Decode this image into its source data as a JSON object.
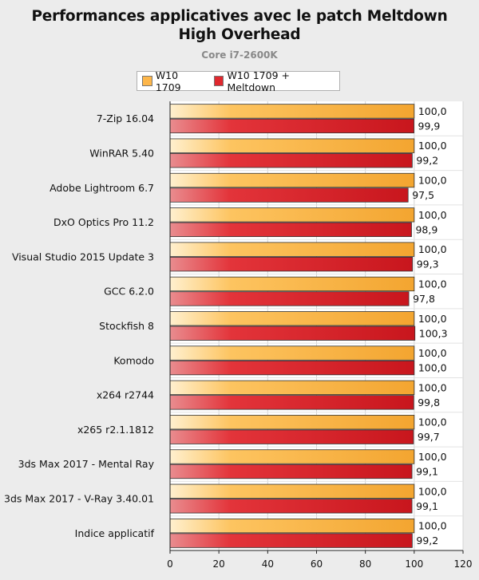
{
  "chart_data": {
    "type": "bar",
    "orientation": "horizontal",
    "title_lines": [
      "Performances applicatives avec le patch Meltdown",
      "High Overhead"
    ],
    "subtitle": "Core i7-2600K",
    "categories": [
      "7-Zip 16.04",
      "WinRAR 5.40",
      "Adobe Lightroom 6.7",
      "DxO Optics Pro 11.2",
      "Visual Studio 2015 Update 3",
      "GCC 6.2.0",
      "Stockfish 8",
      "Komodo",
      "x264 r2744",
      "x265 r2.1.1812",
      "3ds Max 2017 - Mental Ray",
      "3ds Max 2017 - V-Ray 3.40.01",
      "Indice applicatif"
    ],
    "series": [
      {
        "name": "W10 1709",
        "color": "#fdb64a",
        "values": [
          100.0,
          100.0,
          100.0,
          100.0,
          100.0,
          100.0,
          100.0,
          100.0,
          100.0,
          100.0,
          100.0,
          100.0,
          100.0
        ],
        "labels": [
          "100,0",
          "100,0",
          "100,0",
          "100,0",
          "100,0",
          "100,0",
          "100,0",
          "100,0",
          "100,0",
          "100,0",
          "100,0",
          "100,0",
          "100,0"
        ]
      },
      {
        "name": "W10 1709 + Meltdown",
        "color": "#e0282e",
        "values": [
          99.9,
          99.2,
          97.5,
          98.9,
          99.3,
          97.8,
          100.3,
          100.0,
          99.8,
          99.7,
          99.1,
          99.1,
          99.2
        ],
        "labels": [
          "99,9",
          "99,2",
          "97,5",
          "98,9",
          "99,3",
          "97,8",
          "100,3",
          "100,0",
          "99,8",
          "99,7",
          "99,1",
          "99,1",
          "99,2"
        ]
      }
    ],
    "xlim": [
      0,
      120
    ],
    "xticks": [
      0,
      20,
      40,
      60,
      80,
      100,
      120
    ],
    "xlabel": "",
    "ylabel": "",
    "grid": true,
    "legend_position": "top"
  }
}
